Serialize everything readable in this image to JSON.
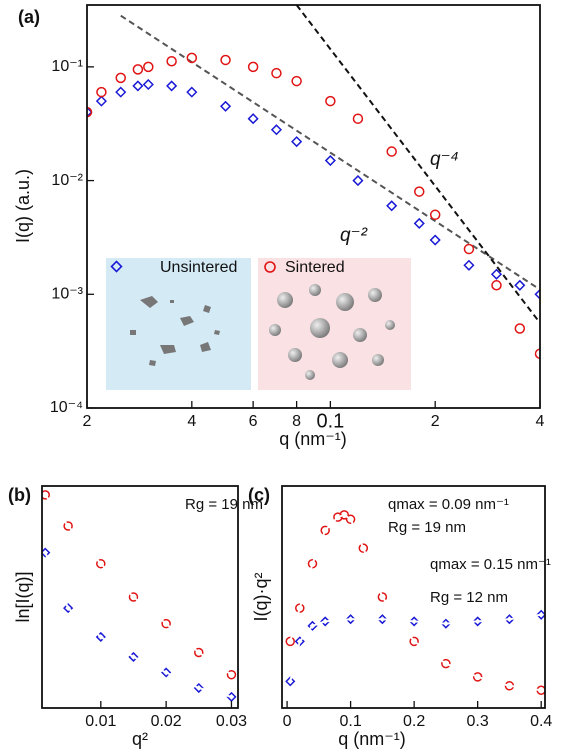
{
  "chart_data": [
    {
      "type": "scatter",
      "panel_label": "(a)",
      "xlabel": "q (nm⁻¹)",
      "ylabel": "I(q) (a.u.)",
      "log_x": true,
      "log_y": true,
      "xlim": [
        0.02,
        0.4
      ],
      "ylim": [
        0.0001,
        0.35
      ],
      "xticks": [
        {
          "value": 0.02,
          "label": "2"
        },
        {
          "value": 0.04,
          "label": "4"
        },
        {
          "value": 0.06,
          "label": "6"
        },
        {
          "value": 0.08,
          "label": "8"
        },
        0.1,
        {
          "value": 0.2,
          "label": "2"
        },
        {
          "value": 0.4,
          "label": "4"
        }
      ],
      "yticks": [
        {
          "value": 0.0001,
          "label": "10⁻⁴"
        },
        {
          "value": 0.001,
          "label": "10⁻³"
        },
        {
          "value": 0.01,
          "label": "10⁻²"
        },
        {
          "value": 0.1,
          "label": "10⁻¹"
        }
      ],
      "series": [
        {
          "name": "Unsintered",
          "color": "#1a1ad6",
          "marker": "diamond",
          "x": [
            0.02,
            0.022,
            0.025,
            0.028,
            0.03,
            0.035,
            0.04,
            0.05,
            0.06,
            0.07,
            0.08,
            0.1,
            0.12,
            0.15,
            0.18,
            0.2,
            0.25,
            0.3,
            0.35,
            0.4
          ],
          "values": [
            0.04,
            0.05,
            0.06,
            0.068,
            0.07,
            0.068,
            0.06,
            0.045,
            0.035,
            0.028,
            0.022,
            0.015,
            0.01,
            0.006,
            0.0042,
            0.003,
            0.0018,
            0.0015,
            0.0012,
            0.001
          ]
        },
        {
          "name": "Sintered",
          "color": "#e01414",
          "marker": "circle",
          "x": [
            0.02,
            0.022,
            0.025,
            0.028,
            0.03,
            0.035,
            0.04,
            0.05,
            0.06,
            0.07,
            0.08,
            0.1,
            0.12,
            0.15,
            0.18,
            0.2,
            0.25,
            0.3,
            0.35,
            0.4
          ],
          "values": [
            0.04,
            0.06,
            0.08,
            0.095,
            0.1,
            0.112,
            0.12,
            0.115,
            0.1,
            0.088,
            0.075,
            0.05,
            0.035,
            0.018,
            0.008,
            0.005,
            0.0025,
            0.0012,
            0.0005,
            0.0003
          ]
        }
      ],
      "reference_lines": [
        {
          "label": "q⁻²",
          "color": "#555555",
          "x": [
            0.025,
            0.4
          ],
          "values": [
            0.282,
            0.0011
          ]
        },
        {
          "label": "q⁻⁴",
          "color": "#111111",
          "x": [
            0.08,
            0.4
          ],
          "values": [
            0.35,
            0.00056
          ]
        }
      ]
    },
    {
      "type": "scatter",
      "panel_label": "(b)",
      "xlabel": "q²",
      "ylabel": "ln[I(q)]",
      "xlim": [
        0.001,
        0.031
      ],
      "ylim": [
        0,
        10
      ],
      "xticks": [
        0.01,
        0.02,
        0.03
      ],
      "annotations": [
        "Rg = 19 nm"
      ],
      "series": [
        {
          "color": "#e01414",
          "marker": "circle",
          "x": [
            0.0015,
            0.005,
            0.01,
            0.015,
            0.02,
            0.025,
            0.03
          ],
          "values": [
            9.6,
            8.2,
            6.5,
            5.0,
            3.8,
            2.5,
            1.5
          ]
        },
        {
          "color": "#1a1ad6",
          "marker": "diamond",
          "x": [
            0.0015,
            0.005,
            0.01,
            0.015,
            0.02,
            0.025,
            0.03
          ],
          "values": [
            7.0,
            4.5,
            3.2,
            2.3,
            1.6,
            0.9,
            0.5
          ]
        }
      ]
    },
    {
      "type": "scatter",
      "panel_label": "(c)",
      "xlabel": "q (nm⁻¹)",
      "ylabel": "I(q)·q²",
      "xlim": [
        -0.008,
        0.406
      ],
      "ylim": [
        0,
        10
      ],
      "xticks": [
        0,
        0.1,
        0.2,
        0.3,
        0.4
      ],
      "annotations": [
        "qmax = 0.09 nm⁻¹",
        "Rg = 19 nm",
        "qmax = 0.15 nm⁻¹",
        "Rg = 12 nm"
      ],
      "series": [
        {
          "color": "#e01414",
          "marker": "circle",
          "x": [
            0.005,
            0.02,
            0.04,
            0.06,
            0.08,
            0.09,
            0.1,
            0.12,
            0.15,
            0.2,
            0.25,
            0.3,
            0.35,
            0.4
          ],
          "values": [
            3,
            4.5,
            6.5,
            8,
            8.6,
            8.7,
            8.5,
            7.2,
            5.0,
            3.0,
            2.0,
            1.4,
            1.0,
            0.8
          ]
        },
        {
          "color": "#1a1ad6",
          "marker": "diamond",
          "x": [
            0.005,
            0.02,
            0.04,
            0.06,
            0.1,
            0.15,
            0.2,
            0.25,
            0.3,
            0.35,
            0.4
          ],
          "values": [
            1.2,
            3.0,
            3.7,
            3.9,
            4.0,
            4.0,
            3.9,
            3.8,
            3.9,
            4.0,
            4.2
          ]
        }
      ]
    }
  ]
}
